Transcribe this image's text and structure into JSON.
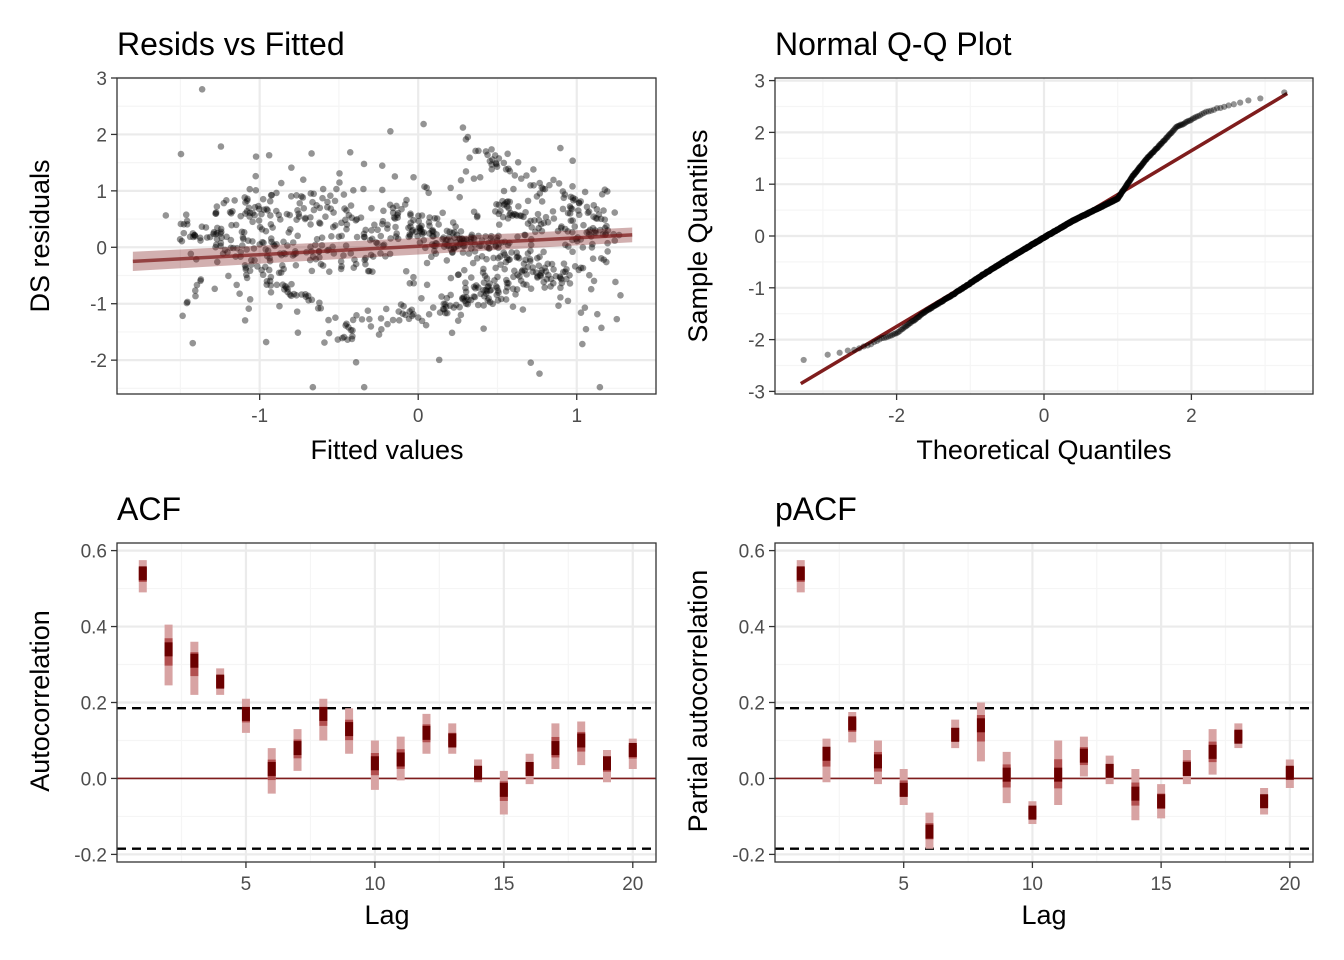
{
  "colors": {
    "accent": "#7f1d1d",
    "ci_band": "#d8a3a3",
    "points": "#000000",
    "grid_major": "#ebebeb",
    "grid_minor": "#f5f5f5",
    "panel_border": "#333333",
    "tick_text": "#4d4d4d"
  },
  "chart_data": [
    {
      "type": "scatter",
      "title": "Resids vs Fitted",
      "xlabel": "Fitted values",
      "ylabel": "DS residuals",
      "xlim": [
        -1.9,
        1.5
      ],
      "ylim": [
        -2.6,
        3.0
      ],
      "xticks": [
        -1,
        0,
        1
      ],
      "yticks": [
        -2,
        -1,
        0,
        1,
        2,
        3
      ],
      "grid": true,
      "n_points": 900,
      "fit_line": {
        "x": [
          -1.8,
          1.35
        ],
        "y": [
          -0.25,
          0.22
        ]
      },
      "fit_band_halfwidth": [
        0.17,
        0.13
      ],
      "clusters": [
        {
          "x": [
            -1.5,
            -0.6
          ],
          "y": [
            0.5,
            -1.1
          ]
        },
        {
          "x": [
            -1.5,
            -0.3
          ],
          "y": [
            0.25,
            -0.3
          ]
        },
        {
          "x": [
            -1.3,
            -0.2
          ],
          "y": [
            0.9,
            0.1
          ]
        },
        {
          "x": [
            -0.9,
            0.3
          ],
          "y": [
            1.0,
            0.0
          ]
        },
        {
          "x": [
            -0.3,
            0.8
          ],
          "y": [
            0.8,
            -0.3
          ]
        },
        {
          "x": [
            0.0,
            1.0
          ],
          "y": [
            0.3,
            -0.6
          ]
        },
        {
          "x": [
            0.2,
            1.1
          ],
          "y": [
            -0.9,
            -0.3
          ]
        },
        {
          "x": [
            0.3,
            1.2
          ],
          "y": [
            1.9,
            0.4
          ]
        },
        {
          "x": [
            -0.6,
            0.6
          ],
          "y": [
            -1.6,
            -0.8
          ]
        },
        {
          "x": [
            0.5,
            1.2
          ],
          "y": [
            0.7,
            0.1
          ]
        }
      ]
    },
    {
      "type": "scatter",
      "title": "Normal Q-Q Plot",
      "xlabel": "Theoretical Quantiles",
      "ylabel": "Sample Quantiles",
      "xlim": [
        -3.65,
        3.65
      ],
      "ylim": [
        -3.05,
        3.05
      ],
      "xticks": [
        -2,
        0,
        2
      ],
      "yticks": [
        -3,
        -2,
        -1,
        0,
        1,
        2,
        3
      ],
      "grid": true,
      "n_points": 900,
      "reference_line": {
        "x": [
          -3.3,
          3.3
        ],
        "y": [
          -2.85,
          2.75
        ]
      },
      "sample_quantile_curve": {
        "x": [
          -3.3,
          -3.0,
          -2.6,
          -2.4,
          -2.2,
          -2.0,
          -1.6,
          -1.2,
          -0.8,
          -0.4,
          0.0,
          0.4,
          0.8,
          1.0,
          1.2,
          1.4,
          1.6,
          1.8,
          2.2,
          2.6,
          3.0,
          3.3
        ],
        "y": [
          -2.4,
          -2.32,
          -2.2,
          -2.12,
          -1.98,
          -1.88,
          -1.45,
          -1.1,
          -0.72,
          -0.37,
          -0.03,
          0.3,
          0.58,
          0.72,
          1.15,
          1.5,
          1.8,
          2.1,
          2.4,
          2.56,
          2.68,
          2.78
        ]
      }
    },
    {
      "type": "scatter",
      "title": "ACF",
      "xlabel": "Lag",
      "ylabel": "Autocorrelation",
      "xlim": [
        0.0,
        20.9
      ],
      "ylim": [
        -0.22,
        0.62
      ],
      "xticks": [
        5,
        10,
        15,
        20
      ],
      "yticks": [
        -0.2,
        0.0,
        0.2,
        0.4,
        0.6
      ],
      "yticklabels": [
        "-0.2",
        "0.0",
        "0.2",
        "0.4",
        "0.6"
      ],
      "grid": true,
      "zero_line": 0.0,
      "significance_bounds": [
        0.185,
        -0.185
      ],
      "x": [
        1,
        2,
        3,
        4,
        5,
        6,
        7,
        8,
        9,
        10,
        11,
        12,
        13,
        14,
        15,
        16,
        17,
        18,
        19,
        20
      ],
      "y": [
        0.54,
        0.34,
        0.31,
        0.255,
        0.17,
        0.025,
        0.08,
        0.17,
        0.13,
        0.04,
        0.05,
        0.12,
        0.1,
        0.015,
        -0.03,
        0.025,
        0.08,
        0.1,
        0.04,
        0.075
      ],
      "interval_low": [
        0.49,
        0.245,
        0.22,
        0.22,
        0.12,
        -0.04,
        0.02,
        0.1,
        0.065,
        -0.03,
        -0.005,
        0.065,
        0.065,
        -0.01,
        -0.095,
        -0.015,
        0.025,
        0.035,
        -0.01,
        0.025
      ],
      "interval_high": [
        0.575,
        0.405,
        0.36,
        0.29,
        0.21,
        0.08,
        0.13,
        0.21,
        0.185,
        0.1,
        0.11,
        0.17,
        0.145,
        0.05,
        0.02,
        0.065,
        0.145,
        0.15,
        0.075,
        0.105
      ]
    },
    {
      "type": "scatter",
      "title": "pACF",
      "xlabel": "Lag",
      "ylabel": "Partial autocorrelation",
      "xlim": [
        0.0,
        20.9
      ],
      "ylim": [
        -0.22,
        0.62
      ],
      "xticks": [
        5,
        10,
        15,
        20
      ],
      "yticks": [
        -0.2,
        0.0,
        0.2,
        0.4,
        0.6
      ],
      "yticklabels": [
        "-0.2",
        "0.0",
        "0.2",
        "0.4",
        "0.6"
      ],
      "grid": true,
      "zero_line": 0.0,
      "significance_bounds": [
        0.185,
        -0.185
      ],
      "x": [
        1,
        2,
        3,
        4,
        5,
        6,
        7,
        8,
        9,
        10,
        11,
        12,
        13,
        14,
        15,
        16,
        17,
        18,
        19,
        20
      ],
      "y": [
        0.54,
        0.065,
        0.145,
        0.045,
        -0.03,
        -0.14,
        0.115,
        0.14,
        0.01,
        -0.09,
        0.01,
        0.06,
        0.02,
        -0.04,
        -0.06,
        0.025,
        0.07,
        0.11,
        -0.06,
        0.015
      ],
      "interval_low": [
        0.49,
        -0.01,
        0.095,
        -0.015,
        -0.07,
        -0.185,
        0.08,
        0.045,
        -0.065,
        -0.12,
        -0.07,
        0.005,
        -0.015,
        -0.11,
        -0.105,
        -0.015,
        0.01,
        0.08,
        -0.095,
        -0.025
      ],
      "interval_high": [
        0.575,
        0.105,
        0.175,
        0.1,
        0.025,
        -0.09,
        0.155,
        0.2,
        0.07,
        -0.06,
        0.1,
        0.11,
        0.06,
        0.025,
        -0.015,
        0.075,
        0.13,
        0.145,
        -0.025,
        0.05
      ]
    }
  ]
}
